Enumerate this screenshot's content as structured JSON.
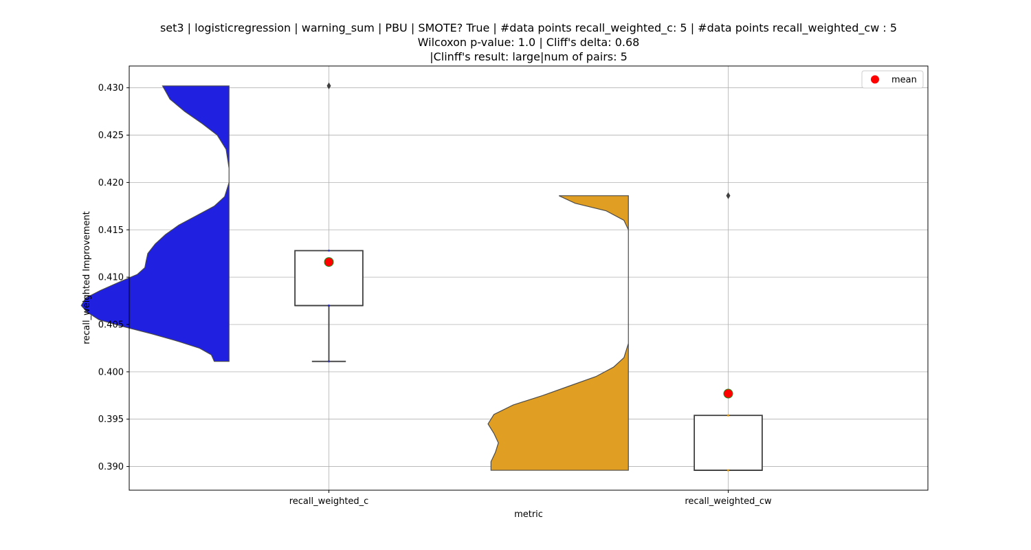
{
  "chart_data": {
    "type": "violin-box",
    "title_lines": [
      "set3 | logisticregression | warning_sum | PBU | SMOTE? True | #data points recall_weighted_c: 5 | #data points recall_weighted_cw : 5",
      "Wilcoxon p-value: 1.0 | Cliff's delta: 0.68",
      "|Clinff's result: large|num of pairs: 5"
    ],
    "xlabel": "metric",
    "ylabel": "recall_weighted Improvement",
    "categories": [
      "recall_weighted_c",
      "recall_weighted_cw"
    ],
    "ylim": [
      0.3875,
      0.4323
    ],
    "yticks": [
      0.39,
      0.395,
      0.4,
      0.405,
      0.41,
      0.415,
      0.42,
      0.425,
      0.43
    ],
    "ytick_labels": [
      "0.390",
      "0.395",
      "0.400",
      "0.405",
      "0.410",
      "0.415",
      "0.420",
      "0.425",
      "0.430"
    ],
    "grid": true,
    "legend": {
      "placement": "top-right",
      "entries": [
        {
          "label": "mean",
          "color": "#ff0000"
        }
      ]
    },
    "series": [
      {
        "category": "recall_weighted_c",
        "color": "#2020e0",
        "violin_range": [
          0.4011,
          0.4302
        ],
        "box": {
          "q1": 0.407,
          "median": 0.407,
          "q3": 0.4128,
          "whisker_low": 0.4011,
          "whisker_high": 0.4128
        },
        "outliers": [
          0.4302
        ],
        "mean": 0.4116,
        "points": [
          0.4011,
          0.407,
          0.407,
          0.4128,
          0.4302
        ],
        "density": [
          [
            0.4011,
            0.1
          ],
          [
            0.4018,
            0.12
          ],
          [
            0.4025,
            0.2
          ],
          [
            0.4032,
            0.34
          ],
          [
            0.404,
            0.52
          ],
          [
            0.4048,
            0.72
          ],
          [
            0.4055,
            0.88
          ],
          [
            0.4063,
            0.96
          ],
          [
            0.407,
            1.0
          ],
          [
            0.4078,
            0.97
          ],
          [
            0.4086,
            0.87
          ],
          [
            0.4095,
            0.74
          ],
          [
            0.4103,
            0.62
          ],
          [
            0.411,
            0.57
          ],
          [
            0.4118,
            0.56
          ],
          [
            0.4125,
            0.55
          ],
          [
            0.4135,
            0.5
          ],
          [
            0.4145,
            0.43
          ],
          [
            0.4155,
            0.34
          ],
          [
            0.4165,
            0.22
          ],
          [
            0.4175,
            0.1
          ],
          [
            0.4185,
            0.03
          ],
          [
            0.42,
            0.0
          ],
          [
            0.4215,
            0.0
          ],
          [
            0.4235,
            0.02
          ],
          [
            0.425,
            0.08
          ],
          [
            0.4262,
            0.18
          ],
          [
            0.4275,
            0.3
          ],
          [
            0.4288,
            0.4
          ],
          [
            0.4302,
            0.45
          ]
        ]
      },
      {
        "category": "recall_weighted_cw",
        "color": "#e09e22",
        "violin_range": [
          0.3896,
          0.4186
        ],
        "box": {
          "q1": 0.3896,
          "median": 0.3896,
          "q3": 0.3954,
          "whisker_low": 0.3896,
          "whisker_high": 0.3954
        },
        "outliers": [
          0.4186
        ],
        "mean": 0.3977,
        "points": [
          0.3896,
          0.3896,
          0.3954,
          0.3954,
          0.4186
        ],
        "density": [
          [
            0.3896,
            0.93
          ],
          [
            0.3905,
            0.93
          ],
          [
            0.3915,
            0.9
          ],
          [
            0.3925,
            0.88
          ],
          [
            0.3935,
            0.91
          ],
          [
            0.3945,
            0.95
          ],
          [
            0.3955,
            0.91
          ],
          [
            0.3965,
            0.78
          ],
          [
            0.3975,
            0.58
          ],
          [
            0.3985,
            0.4
          ],
          [
            0.3995,
            0.22
          ],
          [
            0.4005,
            0.1
          ],
          [
            0.4015,
            0.03
          ],
          [
            0.403,
            0.0
          ],
          [
            0.405,
            0.0
          ],
          [
            0.408,
            0.0
          ],
          [
            0.412,
            0.0
          ],
          [
            0.415,
            0.0
          ],
          [
            0.416,
            0.03
          ],
          [
            0.417,
            0.15
          ],
          [
            0.4178,
            0.36
          ],
          [
            0.4186,
            0.47
          ]
        ]
      }
    ]
  }
}
